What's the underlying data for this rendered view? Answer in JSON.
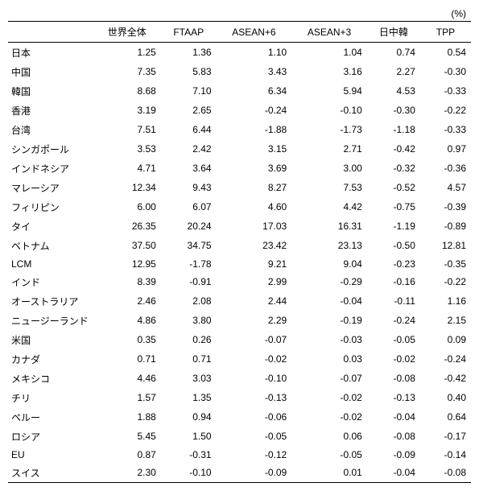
{
  "unit_label": "(%)",
  "columns": [
    "世界全体",
    "FTAAP",
    "ASEAN+6",
    "ASEAN+3",
    "日中韓",
    "TPP"
  ],
  "rows": [
    {
      "label": "日本",
      "vals": [
        "1.25",
        "1.36",
        "1.10",
        "1.04",
        "0.74",
        "0.54"
      ]
    },
    {
      "label": "中国",
      "vals": [
        "7.35",
        "5.83",
        "3.43",
        "3.16",
        "2.27",
        "-0.30"
      ]
    },
    {
      "label": "韓国",
      "vals": [
        "8.68",
        "7.10",
        "6.34",
        "5.94",
        "4.53",
        "-0.33"
      ]
    },
    {
      "label": "香港",
      "vals": [
        "3.19",
        "2.65",
        "-0.24",
        "-0.10",
        "-0.30",
        "-0.22"
      ]
    },
    {
      "label": "台湾",
      "vals": [
        "7.51",
        "6.44",
        "-1.88",
        "-1.73",
        "-1.18",
        "-0.33"
      ]
    },
    {
      "label": "シンガポール",
      "vals": [
        "3.53",
        "2.42",
        "3.15",
        "2.71",
        "-0.42",
        "0.97"
      ]
    },
    {
      "label": "インドネシア",
      "vals": [
        "4.71",
        "3.64",
        "3.69",
        "3.00",
        "-0.32",
        "-0.36"
      ]
    },
    {
      "label": "マレーシア",
      "vals": [
        "12.34",
        "9.43",
        "8.27",
        "7.53",
        "-0.52",
        "4.57"
      ]
    },
    {
      "label": "フィリピン",
      "vals": [
        "6.00",
        "6.07",
        "4.60",
        "4.42",
        "-0.75",
        "-0.39"
      ]
    },
    {
      "label": "タイ",
      "vals": [
        "26.35",
        "20.24",
        "17.03",
        "16.31",
        "-1.19",
        "-0.89"
      ]
    },
    {
      "label": "ベトナム",
      "vals": [
        "37.50",
        "34.75",
        "23.42",
        "23.13",
        "-0.50",
        "12.81"
      ]
    },
    {
      "label": "LCM",
      "vals": [
        "12.95",
        "-1.78",
        "9.21",
        "9.04",
        "-0.23",
        "-0.35"
      ]
    },
    {
      "label": "インド",
      "vals": [
        "8.39",
        "-0.91",
        "2.99",
        "-0.29",
        "-0.16",
        "-0.22"
      ]
    },
    {
      "label": "オーストラリア",
      "vals": [
        "2.46",
        "2.08",
        "2.44",
        "-0.04",
        "-0.11",
        "1.16"
      ]
    },
    {
      "label": "ニュージーランド",
      "vals": [
        "4.86",
        "3.80",
        "2.29",
        "-0.19",
        "-0.24",
        "2.15"
      ]
    },
    {
      "label": "米国",
      "vals": [
        "0.35",
        "0.26",
        "-0.07",
        "-0.03",
        "-0.05",
        "0.09"
      ]
    },
    {
      "label": "カナダ",
      "vals": [
        "0.71",
        "0.71",
        "-0.02",
        "0.03",
        "-0.02",
        "-0.24"
      ]
    },
    {
      "label": "メキシコ",
      "vals": [
        "4.46",
        "3.03",
        "-0.10",
        "-0.07",
        "-0.08",
        "-0.42"
      ]
    },
    {
      "label": "チリ",
      "vals": [
        "1.57",
        "1.35",
        "-0.13",
        "-0.02",
        "-0.13",
        "0.40"
      ]
    },
    {
      "label": "ペルー",
      "vals": [
        "1.88",
        "0.94",
        "-0.06",
        "-0.02",
        "-0.04",
        "0.64"
      ]
    },
    {
      "label": "ロシア",
      "vals": [
        "5.45",
        "1.50",
        "-0.05",
        "0.06",
        "-0.08",
        "-0.17"
      ]
    },
    {
      "label": "EU",
      "vals": [
        "0.87",
        "-0.31",
        "-0.12",
        "-0.05",
        "-0.09",
        "-0.14"
      ]
    },
    {
      "label": "スイス",
      "vals": [
        "2.30",
        "-0.10",
        "-0.09",
        "0.01",
        "-0.04",
        "-0.08"
      ]
    }
  ]
}
